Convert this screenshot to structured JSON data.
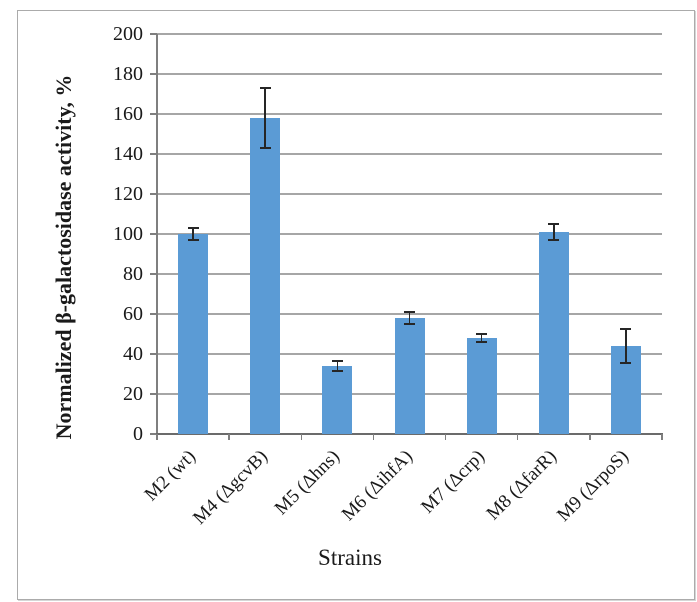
{
  "chart_data": {
    "type": "bar",
    "title": "",
    "categories": [
      "M2 (wt)",
      "M4 (ΔgcvB)",
      "M5 (Δhns)",
      "M6 (ΔihfA)",
      "M7 (Δcrp)",
      "M8 (ΔfarR)",
      "M9 (ΔrpoS)"
    ],
    "values": [
      100,
      158,
      34,
      58,
      48,
      101,
      44
    ],
    "error_bars": [
      3,
      15,
      2.5,
      3,
      2,
      4,
      8.5
    ],
    "xlabel": "Strains",
    "ylabel": "Normalized β-galactosidase activity, %",
    "ylim": [
      0,
      200
    ],
    "yticks": [
      0,
      20,
      40,
      60,
      80,
      100,
      120,
      140,
      160,
      180,
      200
    ],
    "grid": true,
    "legend_position": "none",
    "colors": {
      "bar_fill": "#5B9BD5",
      "gridline": "#A6A6A6",
      "axis": "#7F7F7F",
      "error_bar": "#262626",
      "text": "#1A1A1A",
      "frame_border": "#ABABAB",
      "background": "#FFFFFF"
    }
  }
}
